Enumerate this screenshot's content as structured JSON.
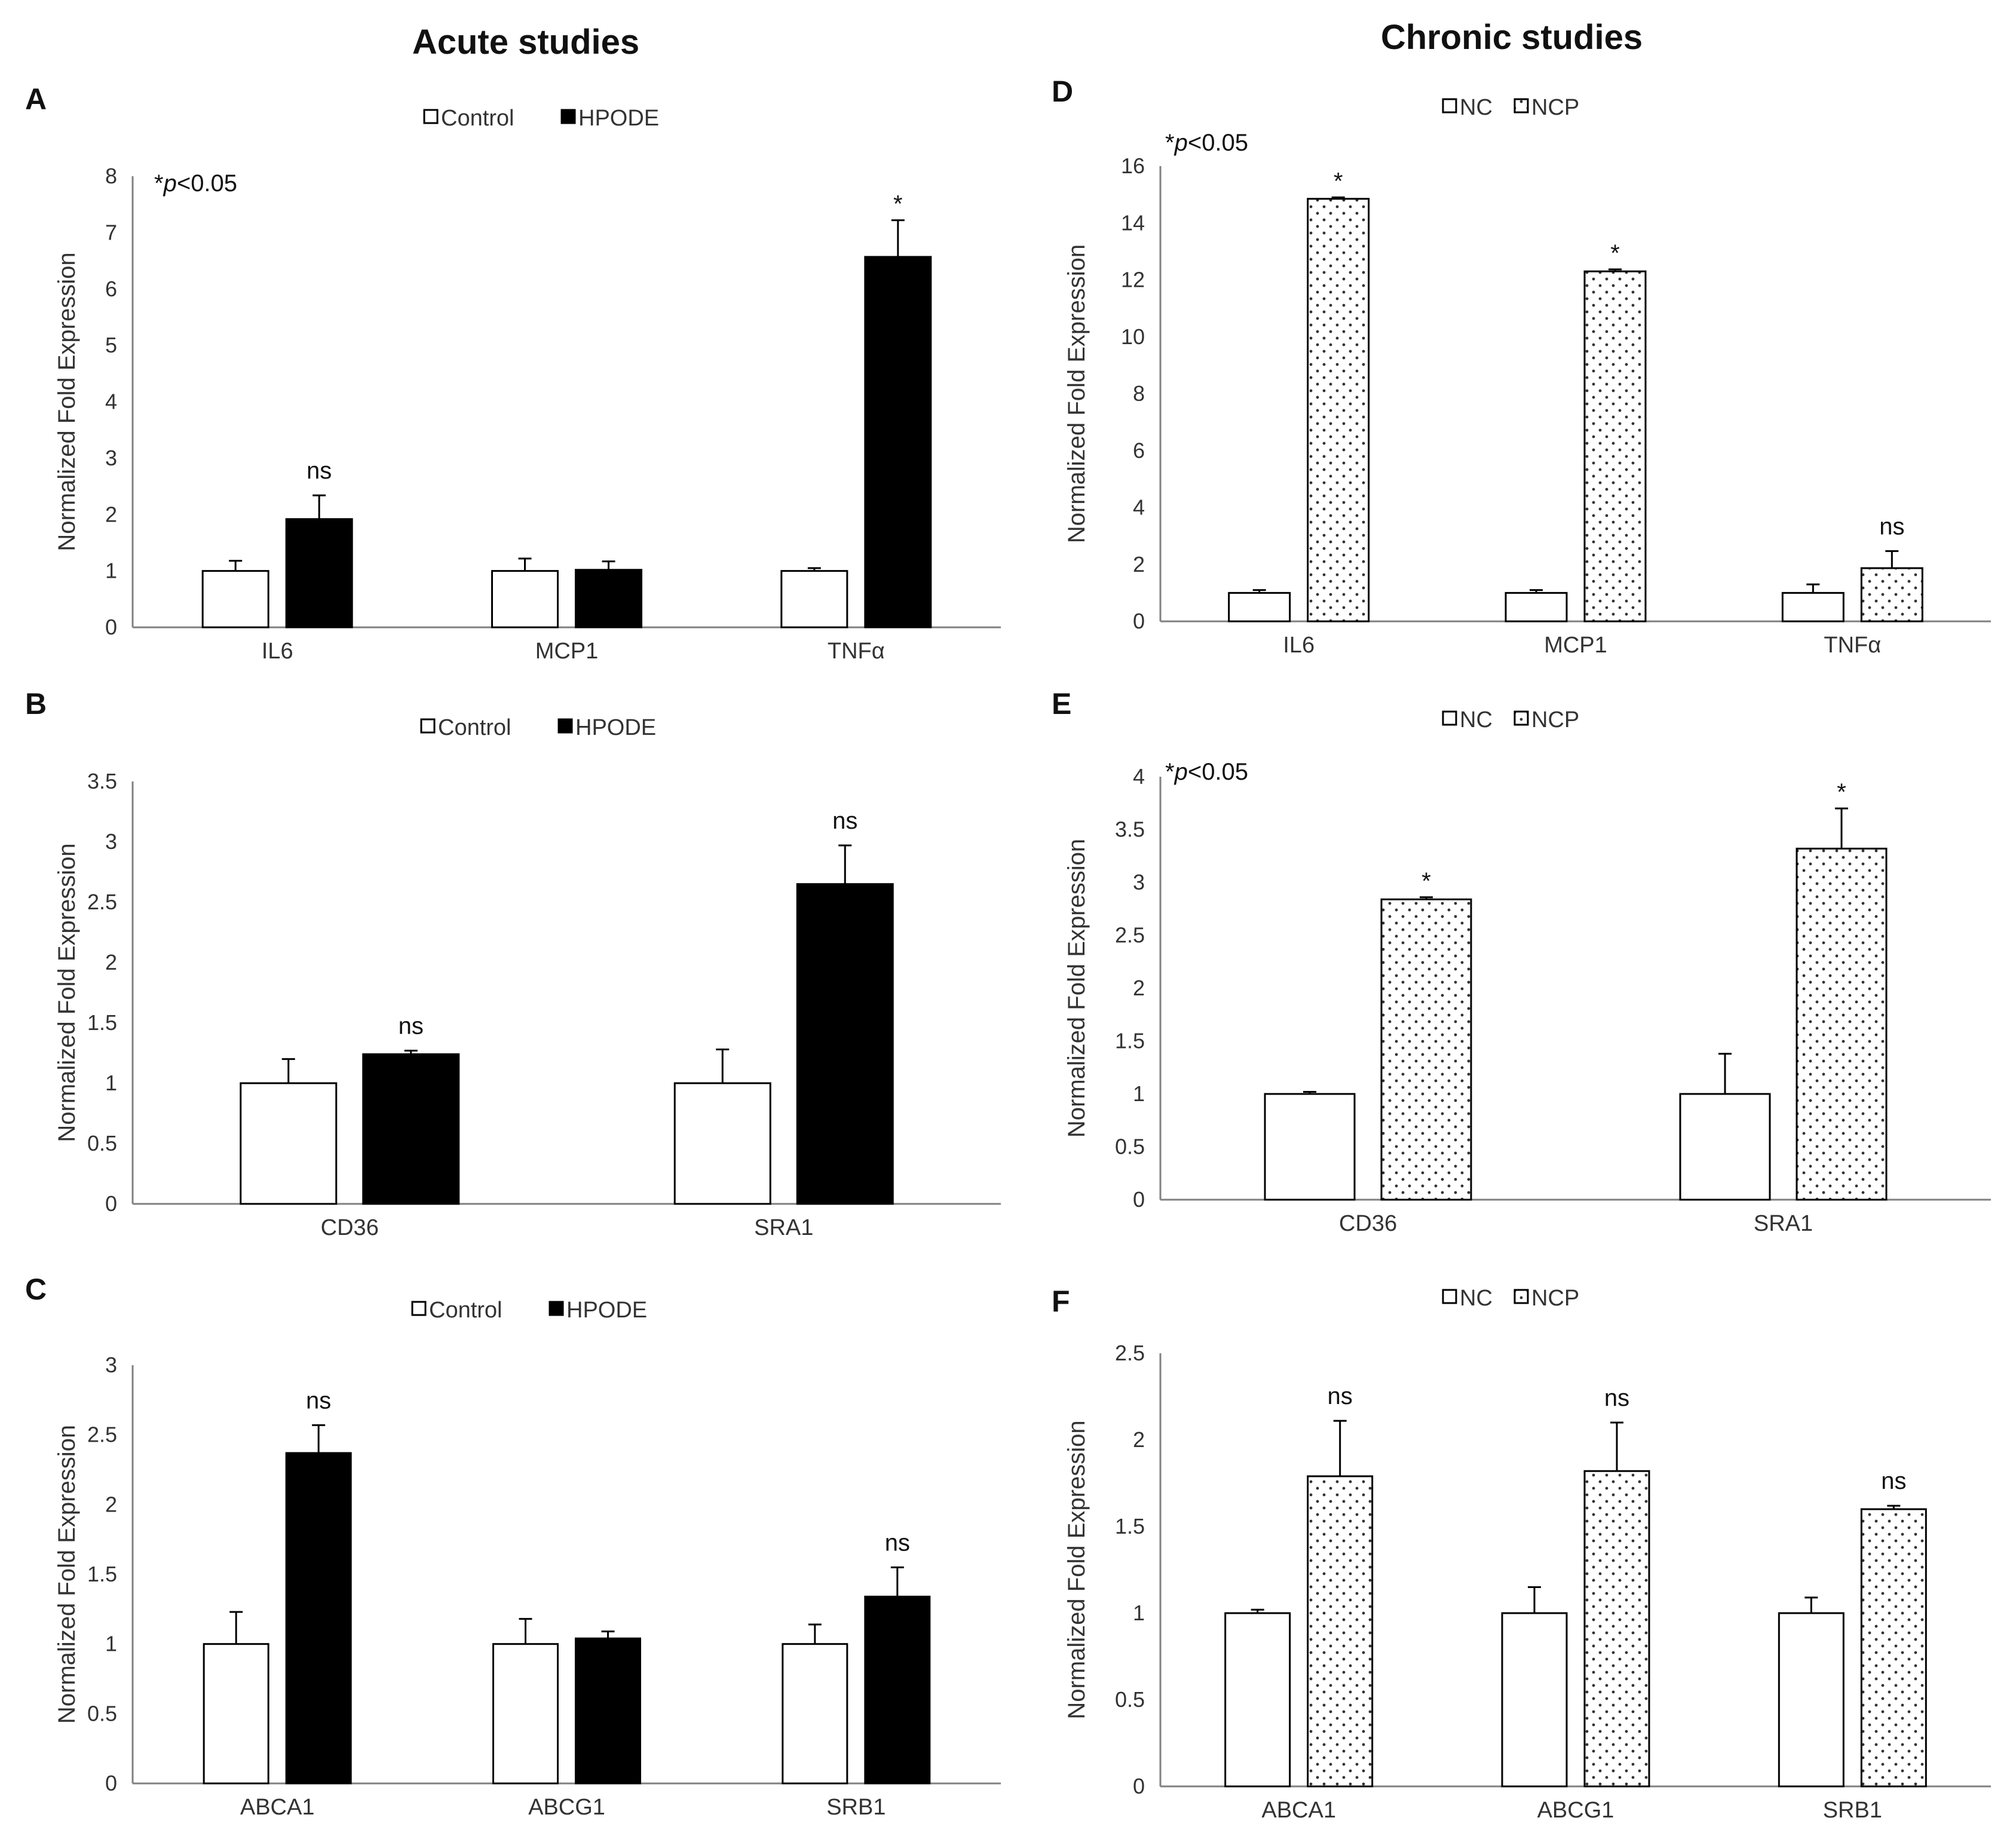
{
  "titles": {
    "acute": "Acute studies",
    "chronic": "Chronic studies"
  },
  "colors": {
    "axis": "#808080",
    "bar_edge": "#000000",
    "control_fill": "#ffffff",
    "hpode_fill": "#000000",
    "ncp_dot": "#333333"
  },
  "chart_data": [
    {
      "id": "A",
      "panel_label": "A",
      "type": "bar",
      "title": "",
      "xlabel": "",
      "ylabel": "Normalized Fold Expression",
      "ylim": [
        0,
        8
      ],
      "yticks": [
        "0",
        "1",
        "2",
        "3",
        "4",
        "5",
        "6",
        "7",
        "8"
      ],
      "annotation": {
        "prefix": "*",
        "italic": "p",
        "suffix": "<0.05"
      },
      "categories": [
        "IL6",
        "MCP1",
        "TNFα"
      ],
      "series": [
        {
          "name": "Control",
          "style": "white",
          "values": [
            1.0,
            1.0,
            1.0
          ],
          "errors": [
            0.18,
            0.22,
            0.05
          ]
        },
        {
          "name": "HPODE",
          "style": "black",
          "values": [
            1.92,
            1.02,
            6.57
          ],
          "errors": [
            0.42,
            0.15,
            0.65
          ]
        }
      ],
      "significance": [
        "ns",
        "",
        "*"
      ]
    },
    {
      "id": "B",
      "panel_label": "B",
      "type": "bar",
      "title": "",
      "xlabel": "",
      "ylabel": "Normalized Fold Expression",
      "ylim": [
        0,
        3.5
      ],
      "yticks": [
        "0",
        "0.5",
        "1",
        "1.5",
        "2",
        "2.5",
        "3",
        "3.5"
      ],
      "categories": [
        "CD36",
        "SRA1"
      ],
      "series": [
        {
          "name": "Control",
          "style": "white",
          "values": [
            1.0,
            1.0
          ],
          "errors": [
            0.2,
            0.28
          ]
        },
        {
          "name": "HPODE",
          "style": "black",
          "values": [
            1.24,
            2.65
          ],
          "errors": [
            0.03,
            0.32
          ]
        }
      ],
      "significance": [
        "ns",
        "ns"
      ]
    },
    {
      "id": "C",
      "panel_label": "C",
      "type": "bar",
      "title": "",
      "xlabel": "",
      "ylabel": "Normalized Fold Expression",
      "ylim": [
        0,
        3
      ],
      "yticks": [
        "0",
        "0.5",
        "1",
        "1.5",
        "2",
        "2.5",
        "3"
      ],
      "categories": [
        "ABCA1",
        "ABCG1",
        "SRB1"
      ],
      "series": [
        {
          "name": "Control",
          "style": "white",
          "values": [
            1.0,
            1.0,
            1.0
          ],
          "errors": [
            0.23,
            0.18,
            0.14
          ]
        },
        {
          "name": "HPODE",
          "style": "black",
          "values": [
            2.37,
            1.04,
            1.34
          ],
          "errors": [
            0.2,
            0.05,
            0.21
          ]
        }
      ],
      "significance": [
        "ns",
        "",
        "ns"
      ]
    },
    {
      "id": "D",
      "panel_label": "D",
      "type": "bar",
      "title": "",
      "xlabel": "",
      "ylabel": "Normalized Fold Expression",
      "ylim": [
        0,
        16
      ],
      "yticks": [
        "0",
        "2",
        "4",
        "6",
        "8",
        "10",
        "12",
        "14",
        "16"
      ],
      "annotation": {
        "prefix": "*",
        "italic": "p",
        "suffix": "<0.05"
      },
      "categories": [
        "IL6",
        "MCP1",
        "TNFα"
      ],
      "series": [
        {
          "name": "NC",
          "style": "white",
          "values": [
            1.0,
            1.0,
            1.0
          ],
          "errors": [
            0.1,
            0.1,
            0.3
          ]
        },
        {
          "name": "NCP",
          "style": "dotted",
          "values": [
            14.85,
            12.3,
            1.87
          ],
          "errors": [
            0.05,
            0.07,
            0.6
          ]
        }
      ],
      "significance": [
        "*",
        "*",
        "ns"
      ]
    },
    {
      "id": "E",
      "panel_label": "E",
      "type": "bar",
      "title": "",
      "xlabel": "",
      "ylabel": "Normalized Fold Expression",
      "ylim": [
        0,
        4
      ],
      "yticks": [
        "0",
        "0.5",
        "1",
        "1.5",
        "2",
        "2.5",
        "3",
        "3.5",
        "4"
      ],
      "annotation": {
        "prefix": "*",
        "italic": "p",
        "suffix": "<0.05"
      },
      "categories": [
        "CD36",
        "SRA1"
      ],
      "series": [
        {
          "name": "NC",
          "style": "white",
          "values": [
            1.0,
            1.0
          ],
          "errors": [
            0.02,
            0.38
          ]
        },
        {
          "name": "NCP",
          "style": "dotted",
          "values": [
            2.84,
            3.32
          ],
          "errors": [
            0.02,
            0.38
          ]
        }
      ],
      "significance": [
        "*",
        "*"
      ]
    },
    {
      "id": "F",
      "panel_label": "F",
      "type": "bar",
      "title": "",
      "xlabel": "",
      "ylabel": "Normalized Fold Expression",
      "ylim": [
        0,
        2.5
      ],
      "yticks": [
        "0",
        "0.5",
        "1",
        "1.5",
        "2",
        "2.5"
      ],
      "categories": [
        "ABCA1",
        "ABCG1",
        "SRB1"
      ],
      "series": [
        {
          "name": "NC",
          "style": "white",
          "values": [
            1.0,
            1.0,
            1.0
          ],
          "errors": [
            0.02,
            0.15,
            0.09
          ]
        },
        {
          "name": "NCP",
          "style": "dotted",
          "values": [
            1.79,
            1.82,
            1.6
          ],
          "errors": [
            0.32,
            0.28,
            0.02
          ]
        }
      ],
      "significance": [
        "ns",
        "ns",
        "ns"
      ]
    }
  ]
}
